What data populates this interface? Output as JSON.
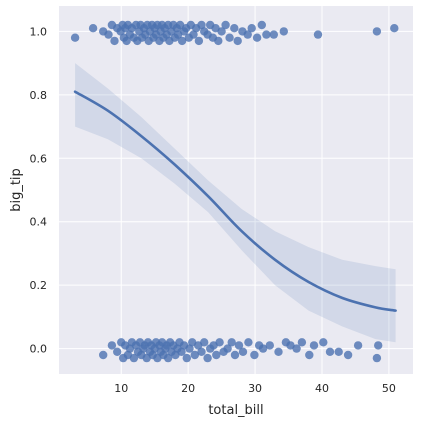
{
  "chart_data": {
    "type": "scatter",
    "title": "",
    "xlabel": "total_bill",
    "ylabel": "big_tip",
    "xlim": [
      0.7,
      53.6
    ],
    "ylim": [
      -0.08,
      1.08
    ],
    "x_ticks": [
      "10",
      "20",
      "30",
      "40",
      "50"
    ],
    "y_ticks": [
      "0.0",
      "0.2",
      "0.4",
      "0.6",
      "0.8",
      "1.0"
    ],
    "grid": true,
    "legend": "none",
    "colors": {
      "points": "#4c72b0",
      "line": "#4c72b0",
      "band": "#4c72b0",
      "background": "#eaeaf2",
      "grid": "#ffffff"
    },
    "series": [
      {
        "kind": "points",
        "points": [
          [
            3.1,
            0.98
          ],
          [
            5.8,
            1.01
          ],
          [
            7.3,
            1.0
          ],
          [
            8.1,
            0.99
          ],
          [
            8.6,
            1.02
          ],
          [
            9.0,
            0.97
          ],
          [
            9.4,
            1.01
          ],
          [
            9.9,
            1.0
          ],
          [
            10.2,
            1.02
          ],
          [
            10.4,
            0.98
          ],
          [
            10.6,
            1.01
          ],
          [
            10.8,
            0.97
          ],
          [
            11.0,
            1.02
          ],
          [
            11.3,
            0.99
          ],
          [
            11.6,
            1.01
          ],
          [
            11.9,
            0.98
          ],
          [
            12.2,
            1.02
          ],
          [
            12.4,
            0.97
          ],
          [
            12.7,
            1.0
          ],
          [
            12.9,
            1.02
          ],
          [
            13.1,
            0.98
          ],
          [
            13.4,
            1.01
          ],
          [
            13.6,
            0.99
          ],
          [
            13.9,
            1.02
          ],
          [
            14.1,
            0.97
          ],
          [
            14.3,
            1.0
          ],
          [
            14.6,
            1.02
          ],
          [
            14.8,
            0.98
          ],
          [
            15.0,
            1.01
          ],
          [
            15.2,
            0.99
          ],
          [
            15.4,
            1.02
          ],
          [
            15.7,
            0.97
          ],
          [
            15.9,
            1.0
          ],
          [
            16.1,
            1.02
          ],
          [
            16.3,
            0.98
          ],
          [
            16.5,
            1.01
          ],
          [
            16.8,
            0.99
          ],
          [
            17.0,
            1.02
          ],
          [
            17.2,
            0.97
          ],
          [
            17.5,
            1.0
          ],
          [
            17.8,
            1.02
          ],
          [
            18.0,
            0.98
          ],
          [
            18.3,
            1.01
          ],
          [
            18.5,
            0.99
          ],
          [
            18.8,
            1.02
          ],
          [
            19.1,
            0.97
          ],
          [
            19.4,
            1.0
          ],
          [
            19.7,
            1.01
          ],
          [
            20.1,
            0.98
          ],
          [
            20.4,
            1.02
          ],
          [
            20.8,
            0.99
          ],
          [
            21.2,
            1.01
          ],
          [
            21.6,
            0.97
          ],
          [
            22.0,
            1.02
          ],
          [
            22.4,
            1.0
          ],
          [
            22.9,
            0.99
          ],
          [
            23.3,
            1.02
          ],
          [
            23.7,
            0.98
          ],
          [
            24.1,
            1.01
          ],
          [
            24.5,
            0.97
          ],
          [
            25.0,
            1.0
          ],
          [
            25.6,
            1.02
          ],
          [
            26.2,
            0.98
          ],
          [
            26.9,
            1.01
          ],
          [
            27.4,
            0.97
          ],
          [
            28.1,
            1.0
          ],
          [
            28.9,
            0.99
          ],
          [
            29.5,
            1.01
          ],
          [
            30.3,
            0.98
          ],
          [
            31.0,
            1.02
          ],
          [
            31.7,
            0.99
          ],
          [
            32.8,
            0.99
          ],
          [
            34.3,
            1.0
          ],
          [
            39.4,
            0.99
          ],
          [
            48.2,
            1.0
          ],
          [
            50.8,
            1.01
          ],
          [
            7.3,
            -0.02
          ],
          [
            8.6,
            0.01
          ],
          [
            9.4,
            -0.01
          ],
          [
            10.0,
            0.02
          ],
          [
            10.3,
            -0.03
          ],
          [
            10.6,
            0.01
          ],
          [
            11.0,
            -0.02
          ],
          [
            11.3,
            0.0
          ],
          [
            11.6,
            0.02
          ],
          [
            11.9,
            -0.03
          ],
          [
            12.2,
            0.01
          ],
          [
            12.5,
            -0.01
          ],
          [
            12.8,
            0.02
          ],
          [
            13.0,
            -0.02
          ],
          [
            13.3,
            0.0
          ],
          [
            13.5,
            0.01
          ],
          [
            13.8,
            -0.03
          ],
          [
            14.0,
            0.02
          ],
          [
            14.3,
            -0.01
          ],
          [
            14.5,
            0.01
          ],
          [
            14.7,
            -0.02
          ],
          [
            15.0,
            0.0
          ],
          [
            15.2,
            0.02
          ],
          [
            15.4,
            -0.03
          ],
          [
            15.7,
            0.01
          ],
          [
            15.9,
            -0.01
          ],
          [
            16.1,
            0.02
          ],
          [
            16.3,
            -0.02
          ],
          [
            16.6,
            0.0
          ],
          [
            16.8,
            0.01
          ],
          [
            17.0,
            -0.03
          ],
          [
            17.3,
            0.02
          ],
          [
            17.5,
            -0.01
          ],
          [
            17.8,
            0.01
          ],
          [
            18.1,
            -0.02
          ],
          [
            18.4,
            0.0
          ],
          [
            18.7,
            0.02
          ],
          [
            19.0,
            -0.01
          ],
          [
            19.4,
            0.01
          ],
          [
            19.8,
            -0.03
          ],
          [
            20.2,
            0.0
          ],
          [
            20.6,
            0.02
          ],
          [
            21.0,
            -0.02
          ],
          [
            21.5,
            0.01
          ],
          [
            22.0,
            -0.01
          ],
          [
            22.4,
            0.02
          ],
          [
            22.9,
            -0.03
          ],
          [
            23.3,
            0.0
          ],
          [
            23.8,
            0.01
          ],
          [
            24.2,
            -0.02
          ],
          [
            24.7,
            0.02
          ],
          [
            25.3,
            -0.01
          ],
          [
            25.9,
            0.0
          ],
          [
            26.5,
            0.02
          ],
          [
            27.0,
            -0.02
          ],
          [
            27.6,
            0.01
          ],
          [
            28.2,
            -0.01
          ],
          [
            29.0,
            0.02
          ],
          [
            29.9,
            -0.02
          ],
          [
            30.6,
            0.01
          ],
          [
            31.2,
            0.0
          ],
          [
            32.2,
            0.01
          ],
          [
            33.5,
            -0.01
          ],
          [
            34.6,
            0.02
          ],
          [
            35.3,
            0.01
          ],
          [
            36.2,
            0.0
          ],
          [
            37.0,
            0.02
          ],
          [
            38.1,
            -0.02
          ],
          [
            38.8,
            0.01
          ],
          [
            40.2,
            0.02
          ],
          [
            41.2,
            -0.01
          ],
          [
            42.5,
            -0.01
          ],
          [
            43.9,
            -0.02
          ],
          [
            45.4,
            0.01
          ],
          [
            48.2,
            -0.03
          ],
          [
            48.4,
            0.01
          ]
        ]
      },
      {
        "kind": "logistic-fit",
        "line": [
          [
            3.1,
            0.81
          ],
          [
            8.0,
            0.75
          ],
          [
            13.0,
            0.67
          ],
          [
            18.0,
            0.58
          ],
          [
            23.0,
            0.48
          ],
          [
            28.0,
            0.37
          ],
          [
            33.0,
            0.28
          ],
          [
            38.0,
            0.21
          ],
          [
            43.0,
            0.16
          ],
          [
            48.0,
            0.13
          ],
          [
            51.0,
            0.12
          ]
        ],
        "band_upper": [
          [
            3.1,
            0.9
          ],
          [
            8.0,
            0.82
          ],
          [
            13.0,
            0.73
          ],
          [
            18.0,
            0.63
          ],
          [
            23.0,
            0.53
          ],
          [
            28.0,
            0.44
          ],
          [
            33.0,
            0.37
          ],
          [
            38.0,
            0.32
          ],
          [
            43.0,
            0.28
          ],
          [
            48.0,
            0.26
          ],
          [
            51.0,
            0.25
          ]
        ],
        "band_lower": [
          [
            3.1,
            0.7
          ],
          [
            8.0,
            0.66
          ],
          [
            13.0,
            0.6
          ],
          [
            18.0,
            0.52
          ],
          [
            23.0,
            0.43
          ],
          [
            28.0,
            0.31
          ],
          [
            33.0,
            0.2
          ],
          [
            38.0,
            0.12
          ],
          [
            43.0,
            0.07
          ],
          [
            48.0,
            0.03
          ],
          [
            51.0,
            0.02
          ]
        ]
      }
    ]
  }
}
